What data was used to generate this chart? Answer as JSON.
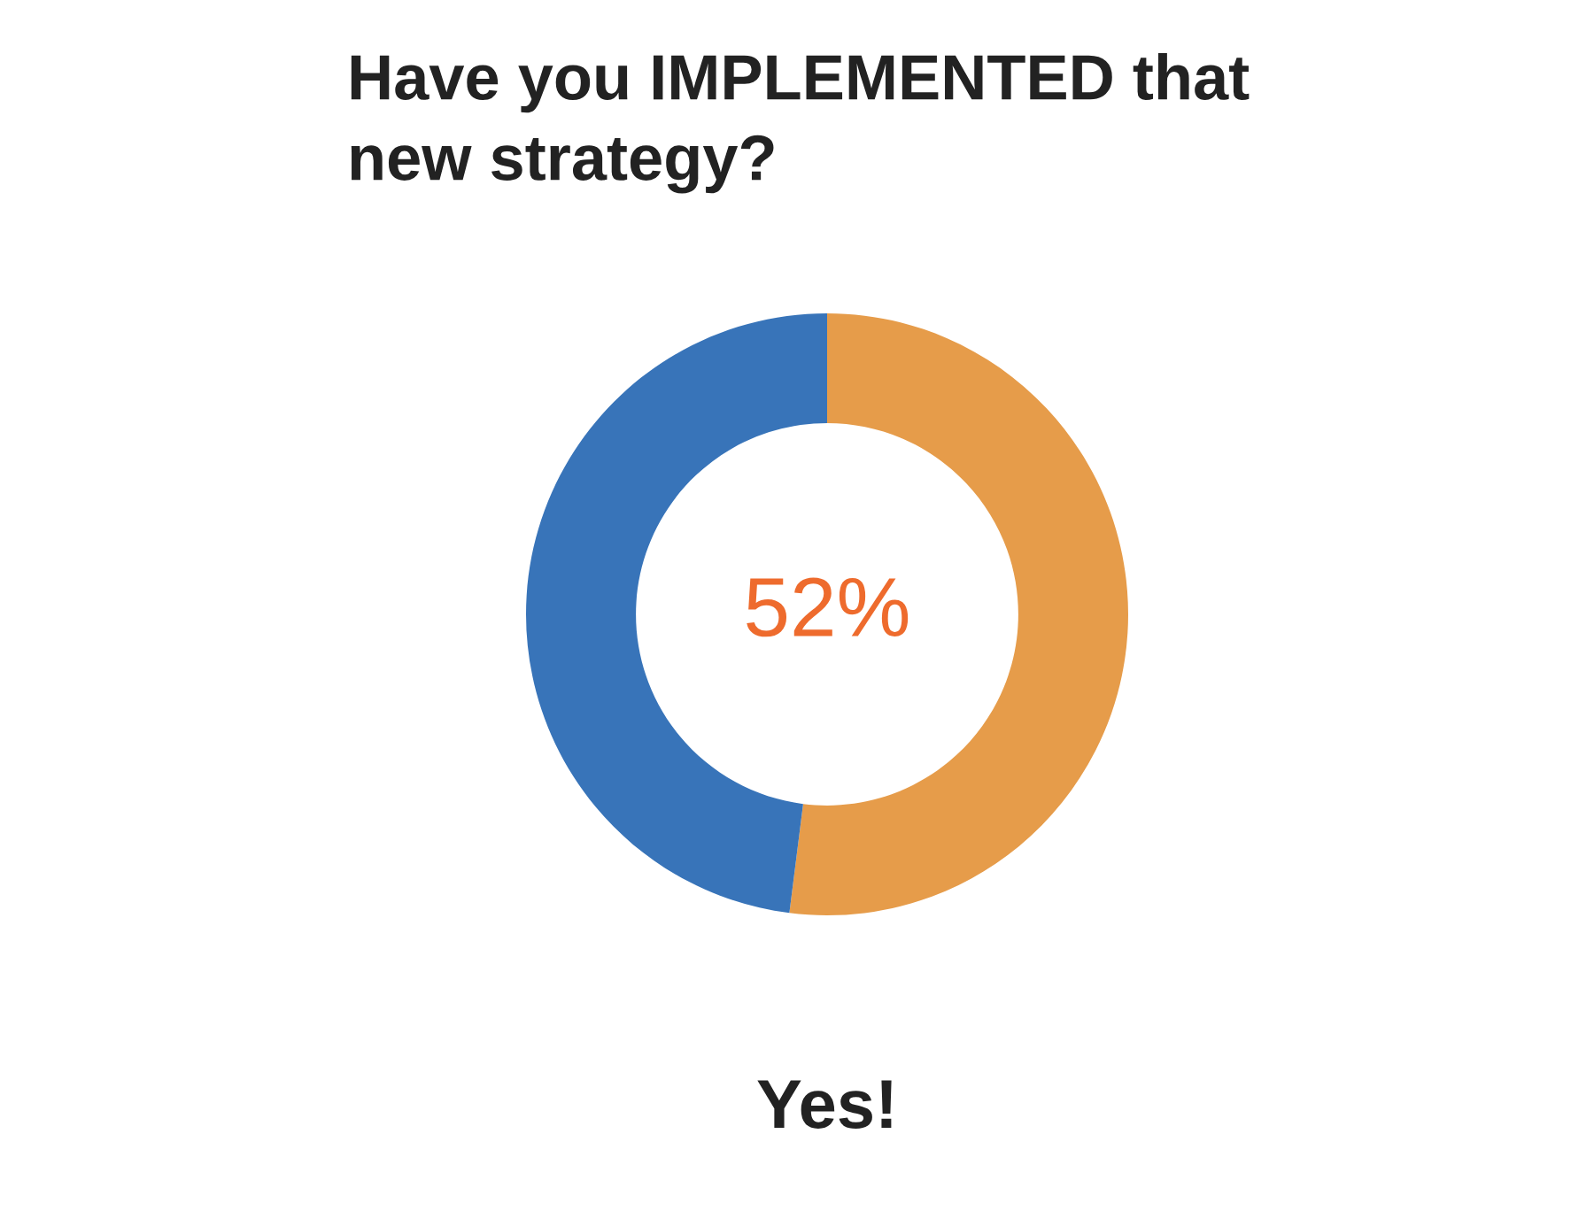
{
  "chart_data": {
    "type": "donut",
    "title": "Have you IMPLEMENTED that new strategy?",
    "categories": [
      null,
      null
    ],
    "values": [
      52,
      48
    ],
    "colors": [
      "#e69c4a",
      "#3874b9"
    ],
    "annotations": [
      "52%"
    ],
    "xlabel": "Yes!"
  }
}
